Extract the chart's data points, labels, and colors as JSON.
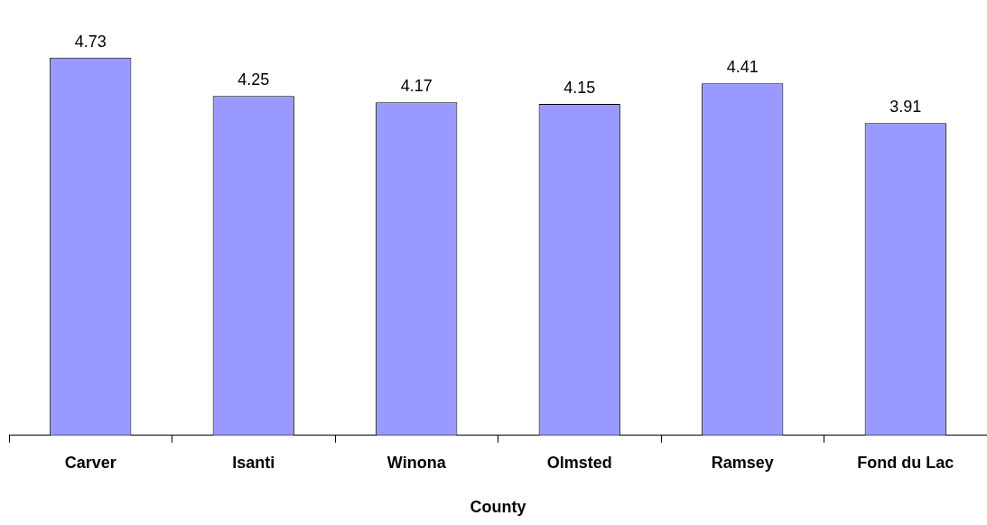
{
  "chart_data": {
    "type": "bar",
    "xlabel": "County",
    "categories": [
      "Carver",
      "Isanti",
      "Winona",
      "Olmsted",
      "Ramsey",
      "Fond du Lac"
    ],
    "values": [
      4.73,
      4.25,
      4.17,
      4.15,
      4.41,
      3.91
    ],
    "color": "#9999ff",
    "data_labels": true,
    "grid": false,
    "legend": false,
    "tick_labels": "x"
  }
}
